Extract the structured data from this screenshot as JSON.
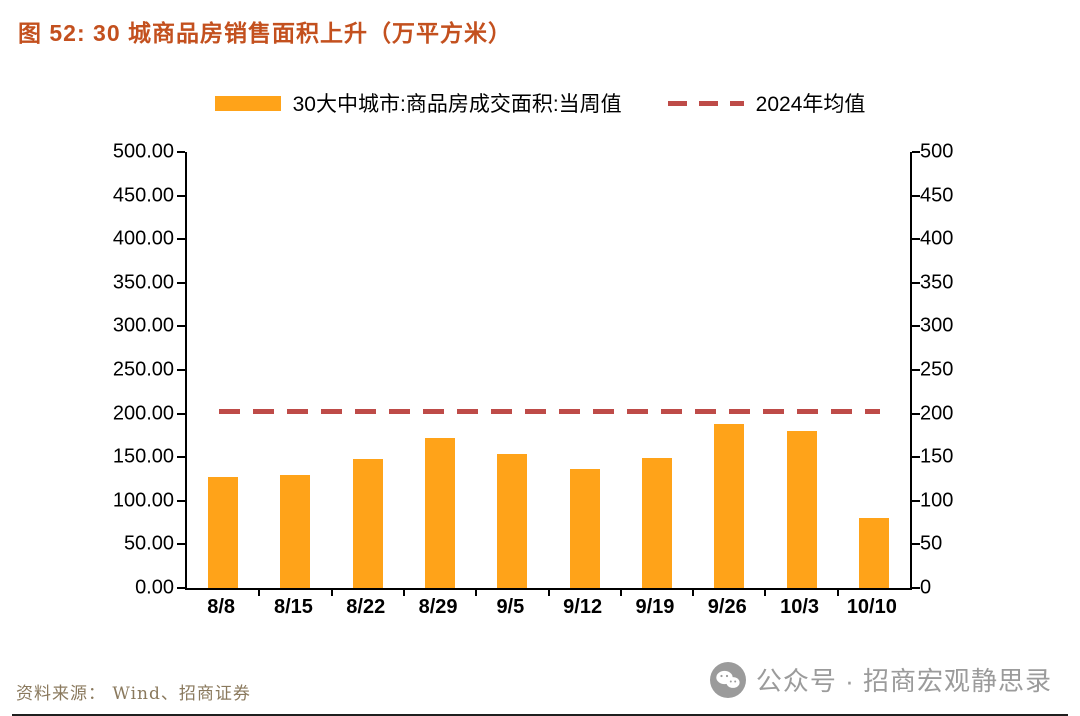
{
  "header": {
    "title": "图 52: 30 城商品房销售面积上升（万平方米）"
  },
  "legend": {
    "bar_label": "30大中城市:商品房成交面积:当周值",
    "line_label": "2024年均值"
  },
  "footer": {
    "source": "资料来源： Wind、招商证券",
    "watermark": "公众号 · 招商宏观静思录"
  },
  "colors": {
    "bar": "#FFA319",
    "avg_line": "#BE4B48",
    "title": "#C3501E",
    "watermark": "#9B9B9B"
  },
  "chart_data": {
    "type": "bar",
    "title": "30 城商品房销售面积上升（万平方米）",
    "series_name": "30大中城市:商品房成交面积:当周值",
    "categories": [
      "8/8",
      "8/15",
      "8/22",
      "8/29",
      "9/5",
      "9/12",
      "9/19",
      "9/26",
      "10/3",
      "10/10"
    ],
    "values": [
      127,
      130,
      148,
      172,
      154,
      137,
      149,
      188,
      180,
      80
    ],
    "average_line": {
      "name": "2024年均值",
      "value": 202
    },
    "ylim": [
      0,
      500
    ],
    "y_tick_step": 50,
    "left_tick_labels": [
      "0.00",
      "50.00",
      "100.00",
      "150.00",
      "200.00",
      "250.00",
      "300.00",
      "350.00",
      "400.00",
      "450.00",
      "500.00"
    ],
    "right_tick_labels": [
      "0",
      "50",
      "100",
      "150",
      "200",
      "250",
      "300",
      "350",
      "400",
      "450",
      "500"
    ],
    "grid": false,
    "legend_position": "top"
  }
}
